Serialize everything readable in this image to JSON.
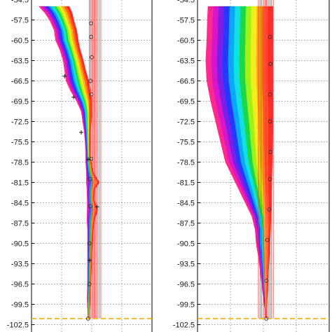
{
  "chart_data": [
    {
      "type": "line",
      "panel": "left",
      "title": "",
      "xlabel": "",
      "ylabel": "",
      "ylim": [
        -103,
        -55.5
      ],
      "xlim": [
        0,
        4
      ],
      "x_grid_positions": [
        1,
        2,
        3
      ],
      "y_ticks": [
        "-57.5",
        "-60.5",
        "-63.5",
        "-66.5",
        "-69.5",
        "-72.5",
        "-75.5",
        "-78.5",
        "-81.5",
        "-84.5",
        "-87.5",
        "-90.5",
        "-93.5",
        "-96.5",
        "-99.5",
        "-102.5"
      ],
      "y_top_tick_partial": "-54.5",
      "grid": true,
      "reference_line": {
        "y": -101.6,
        "color": "#f0b000",
        "style": "dashed"
      },
      "band_colors": [
        "#ff2a8f",
        "#d815c8",
        "#7a1ee8",
        "#2438ff",
        "#0aa6ff",
        "#12e0e0",
        "#19d94a",
        "#9cf21a",
        "#f2ee1a",
        "#ffb01a",
        "#ff6a1a",
        "#ff2a2a"
      ],
      "envelope": {
        "y": [
          -55.5,
          -56.5,
          -57.5,
          -59,
          -60.5,
          -62,
          -63.5,
          -65,
          -66.5,
          -68,
          -69.5,
          -71,
          -72.5,
          -74,
          -75.5,
          -77,
          -78.5,
          -80,
          -81.5,
          -82.5,
          -84,
          -85.5,
          -87,
          -88.5,
          -90.5,
          -92.5,
          -94.5,
          -96.5,
          -98.5,
          -100,
          -101.6
        ],
        "left": [
          0.25,
          0.45,
          0.6,
          0.75,
          0.8,
          0.95,
          1.05,
          1.1,
          1.15,
          1.3,
          1.5,
          1.65,
          1.7,
          1.75,
          1.78,
          1.8,
          1.8,
          1.82,
          1.82,
          1.84,
          1.85,
          1.85,
          1.84,
          1.86,
          1.86,
          1.86,
          1.86,
          1.86,
          1.85,
          1.86,
          1.88
        ],
        "right": [
          1.25,
          1.35,
          1.4,
          1.5,
          1.55,
          1.62,
          1.72,
          1.8,
          1.9,
          1.95,
          2.0,
          2.0,
          1.98,
          1.96,
          1.95,
          1.95,
          1.98,
          2.05,
          2.25,
          2.1,
          2.08,
          2.2,
          2.1,
          2.05,
          2.02,
          2.0,
          1.98,
          1.97,
          1.95,
          1.93,
          1.9
        ]
      },
      "red_line_x": [
        1.92,
        1.96,
        2.0,
        2.04,
        2.08,
        2.12,
        2.18,
        2.24,
        2.3
      ],
      "markers_o": [
        [
          1.98,
          -58.0
        ],
        [
          1.98,
          -60.0
        ],
        [
          2.0,
          -63.0
        ],
        [
          1.96,
          -66.5
        ],
        [
          1.99,
          -68.5
        ],
        [
          1.98,
          -78.0
        ],
        [
          1.94,
          -81.0
        ],
        [
          1.95,
          -85.0
        ],
        [
          1.92,
          -90.5
        ],
        [
          1.92,
          -96.5
        ],
        [
          1.88,
          -101.6
        ]
      ],
      "markers_plus": [
        [
          1.1,
          -65.8
        ],
        [
          1.4,
          -68.9
        ],
        [
          1.65,
          -74.1
        ],
        [
          1.88,
          -78.1
        ],
        [
          1.93,
          -93.0
        ],
        [
          2.18,
          -85.1
        ]
      ]
    },
    {
      "type": "line",
      "panel": "right",
      "title": "",
      "xlabel": "",
      "ylabel": "",
      "ylim": [
        -103,
        -55.5
      ],
      "xlim": [
        0,
        4
      ],
      "x_grid_positions": [
        1,
        2,
        3
      ],
      "y_ticks": [
        "-57.5",
        "-60.5",
        "-63.5",
        "-66.5",
        "-69.5",
        "-72.5",
        "-75.5",
        "-78.5",
        "-81.5",
        "-84.5",
        "-87.5",
        "-90.5",
        "-93.5",
        "-96.5",
        "-99.5",
        "-102.5"
      ],
      "y_top_tick_partial": "-54.5",
      "grid": true,
      "reference_line": {
        "y": -101.6,
        "color": "#f0b000",
        "style": "dashed"
      },
      "band_colors": [
        "#ff2a8f",
        "#d815c8",
        "#7a1ee8",
        "#2438ff",
        "#0aa6ff",
        "#12e0e0",
        "#19d94a",
        "#9cf21a",
        "#f2ee1a",
        "#ffb01a",
        "#ff6a1a",
        "#ff2a2a"
      ],
      "envelope": {
        "y": [
          -55.5,
          -57.5,
          -60.5,
          -63.5,
          -66.5,
          -69.5,
          -72.5,
          -75.5,
          -78.5,
          -80.5,
          -82.5,
          -84.5,
          -86.5,
          -88.5,
          -90.5,
          -92.5,
          -94.5,
          -96.5,
          -98.5,
          -100.5,
          -101.6
        ],
        "left": [
          0.32,
          0.3,
          0.28,
          0.25,
          0.28,
          0.4,
          0.55,
          0.7,
          0.85,
          1.05,
          1.25,
          1.45,
          1.65,
          1.75,
          1.78,
          1.85,
          1.9,
          1.95,
          2.0,
          2.05,
          2.08
        ],
        "right": [
          2.3,
          2.3,
          2.3,
          2.3,
          2.3,
          2.3,
          2.3,
          2.28,
          2.27,
          2.26,
          2.25,
          2.24,
          2.23,
          2.22,
          2.2,
          2.18,
          2.16,
          2.14,
          2.12,
          2.1,
          2.09
        ]
      },
      "red_line_x": [
        1.85,
        1.9,
        1.95,
        2.0,
        2.05,
        2.1,
        2.15,
        2.2,
        2.25,
        2.3
      ],
      "markers_o": [
        [
          2.2,
          -60.0
        ],
        [
          2.22,
          -64.0
        ],
        [
          2.2,
          -68.5
        ],
        [
          2.2,
          -72.5
        ],
        [
          2.22,
          -77.0
        ],
        [
          2.2,
          -81.0
        ],
        [
          2.18,
          -85.5
        ],
        [
          2.12,
          -90.0
        ],
        [
          2.1,
          -96.0
        ],
        [
          2.09,
          -101.6
        ]
      ],
      "markers_plus": []
    }
  ]
}
